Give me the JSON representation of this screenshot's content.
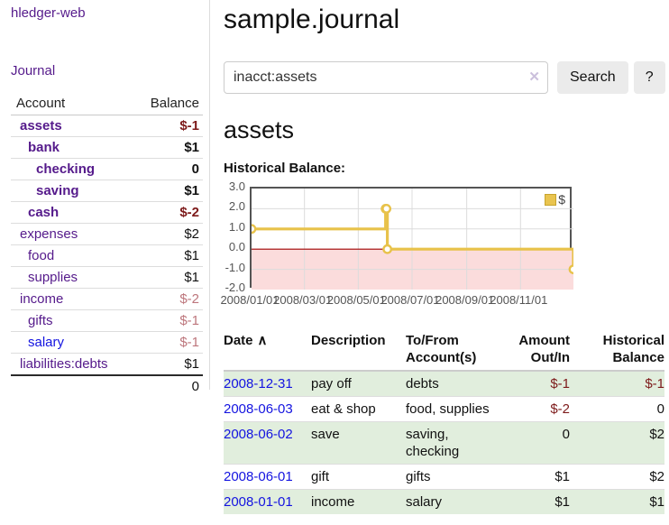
{
  "app": {
    "brand": "hledger-web",
    "nav_journal": "Journal"
  },
  "sidebar": {
    "headers": {
      "account": "Account",
      "balance": "Balance"
    },
    "accounts": [
      {
        "name": "assets",
        "depth": 1,
        "bold": true,
        "link": "purple",
        "balance": "$-1",
        "balance_style": "neg"
      },
      {
        "name": "bank",
        "depth": 2,
        "bold": true,
        "link": "purple",
        "balance": "$1",
        "balance_style": ""
      },
      {
        "name": "checking",
        "depth": 3,
        "bold": true,
        "link": "purple",
        "balance": "0",
        "balance_style": ""
      },
      {
        "name": "saving",
        "depth": 3,
        "bold": true,
        "link": "purple",
        "balance": "$1",
        "balance_style": ""
      },
      {
        "name": "cash",
        "depth": 2,
        "bold": true,
        "link": "purple",
        "balance": "$-2",
        "balance_style": "neg"
      },
      {
        "name": "expenses",
        "depth": 1,
        "bold": false,
        "link": "purple",
        "balance": "$2",
        "balance_style": ""
      },
      {
        "name": "food",
        "depth": 2,
        "bold": false,
        "link": "purple",
        "balance": "$1",
        "balance_style": ""
      },
      {
        "name": "supplies",
        "depth": 2,
        "bold": false,
        "link": "purple",
        "balance": "$1",
        "balance_style": ""
      },
      {
        "name": "income",
        "depth": 1,
        "bold": false,
        "link": "purple",
        "balance": "$-2",
        "balance_style": "negmuted"
      },
      {
        "name": "gifts",
        "depth": 2,
        "bold": false,
        "link": "purple",
        "balance": "$-1",
        "balance_style": "negmuted"
      },
      {
        "name": "salary",
        "depth": 2,
        "bold": false,
        "link": "blue",
        "balance": "$-1",
        "balance_style": "negmuted"
      },
      {
        "name": "liabilities:debts",
        "depth": 1,
        "bold": false,
        "link": "purple",
        "balance": "$1",
        "balance_style": ""
      }
    ],
    "total": "0"
  },
  "header": {
    "title": "sample.journal"
  },
  "search": {
    "value": "inacct:assets",
    "clear_icon": "✕",
    "button_label": "Search",
    "help_label": "?"
  },
  "account_page": {
    "heading": "assets",
    "chart_label": "Historical Balance:"
  },
  "chart_data": {
    "type": "line",
    "title": "Historical Balance:",
    "step": true,
    "xlim": [
      "2008-01-01",
      "2008-12-31"
    ],
    "ylim": [
      -2,
      3
    ],
    "y_ticks": [
      "3.0",
      "2.0",
      "1.0",
      "0.0",
      "-1.0",
      "-2.0"
    ],
    "y_tick_values": [
      3,
      2,
      1,
      0,
      -1,
      -2
    ],
    "x_ticks": [
      "2008/01/01",
      "2008/03/01",
      "2008/05/01",
      "2008/07/01",
      "2008/09/01",
      "2008/11/01"
    ],
    "x_tick_dates": [
      "2008-01-01",
      "2008-03-01",
      "2008-05-01",
      "2008-07-01",
      "2008-09-01",
      "2008-11-01"
    ],
    "grid": true,
    "legend": {
      "position": "top-right"
    },
    "series": [
      {
        "name": "$",
        "color": "#E8C24A",
        "points": [
          [
            "2008-01-01",
            1
          ],
          [
            "2008-06-01",
            2
          ],
          [
            "2008-06-02",
            2
          ],
          [
            "2008-06-03",
            0
          ],
          [
            "2008-12-31",
            -1
          ]
        ]
      }
    ],
    "negative_region_color": "#fbdcdc",
    "zero_line_color": "#a00000"
  },
  "register": {
    "sort_icon": "∧",
    "headers": [
      {
        "label": "Date",
        "align": "left",
        "sortable": true
      },
      {
        "label": "Description",
        "align": "left",
        "sortable": false
      },
      {
        "label": "To/From Account(s)",
        "align": "left",
        "sortable": false
      },
      {
        "label": "Amount Out/In",
        "align": "right",
        "sortable": false
      },
      {
        "label": "Historical Balance",
        "align": "right",
        "sortable": false
      }
    ],
    "rows": [
      {
        "date": "2008-12-31",
        "description": "pay off",
        "accounts": "debts",
        "amount": "$-1",
        "amount_neg": true,
        "balance": "$-1",
        "balance_neg": true
      },
      {
        "date": "2008-06-03",
        "description": "eat & shop",
        "accounts": "food, supplies",
        "amount": "$-2",
        "amount_neg": true,
        "balance": "0",
        "balance_neg": false
      },
      {
        "date": "2008-06-02",
        "description": "save",
        "accounts": "saving, checking",
        "amount": "0",
        "amount_neg": false,
        "balance": "$2",
        "balance_neg": false
      },
      {
        "date": "2008-06-01",
        "description": "gift",
        "accounts": "gifts",
        "amount": "$1",
        "amount_neg": false,
        "balance": "$2",
        "balance_neg": false
      },
      {
        "date": "2008-01-01",
        "description": "income",
        "accounts": "salary",
        "amount": "$1",
        "amount_neg": false,
        "balance": "$1",
        "balance_neg": false
      }
    ]
  },
  "colors": {
    "accent_purple": "#551A8B",
    "link_blue": "#1414E0",
    "negative": "#7d1a1a",
    "negative_muted": "#bd767c",
    "row_stripe_green": "#e1eedd",
    "chart_line_gold": "#E8C24A",
    "chart_negative_bg": "#fbdcdc",
    "chart_zero_line": "#a00000",
    "chart_border": "#545454"
  }
}
